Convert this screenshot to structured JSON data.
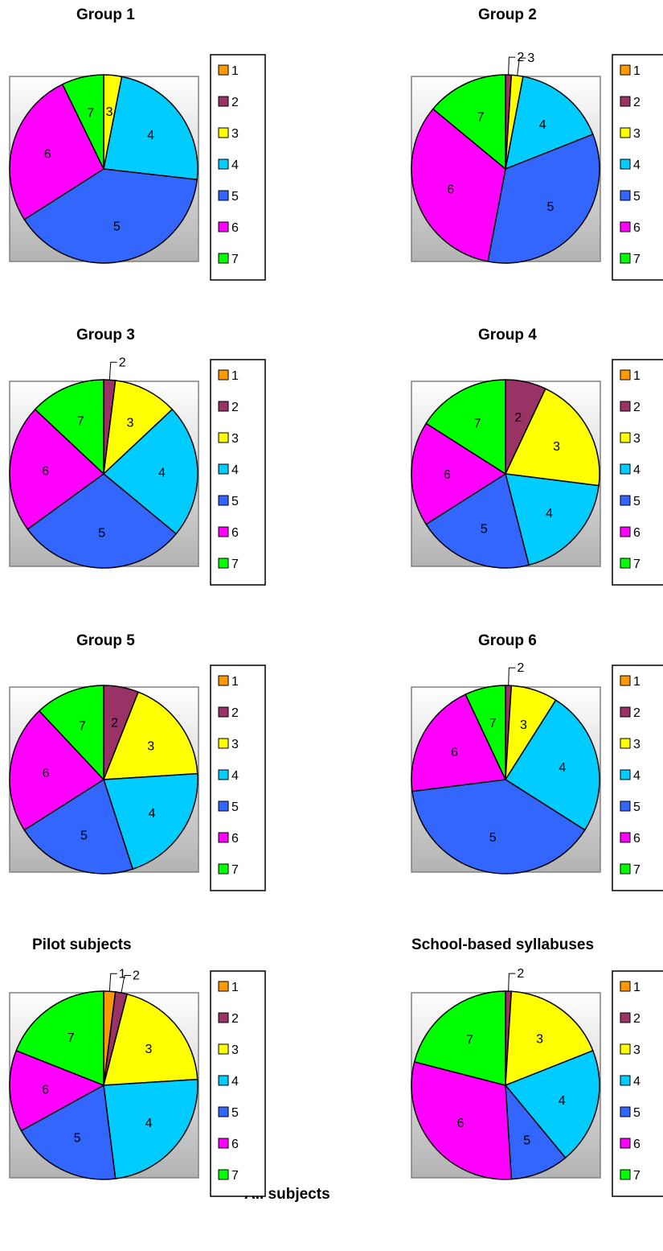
{
  "chart_data": [
    {
      "type": "pie",
      "title": "Group 1",
      "categories": [
        "1",
        "2",
        "3",
        "4",
        "5",
        "6",
        "7"
      ],
      "values": [
        0,
        0,
        3,
        23,
        38,
        26,
        7
      ]
    },
    {
      "type": "pie",
      "title": "Group 2",
      "categories": [
        "1",
        "2",
        "3",
        "4",
        "5",
        "6",
        "7"
      ],
      "values": [
        0,
        1,
        2,
        16,
        34,
        33,
        14
      ]
    },
    {
      "type": "pie",
      "title": "Group 3",
      "categories": [
        "1",
        "2",
        "3",
        "4",
        "5",
        "6",
        "7"
      ],
      "values": [
        0,
        2,
        11,
        23,
        29,
        22,
        13
      ]
    },
    {
      "type": "pie",
      "title": "Group 4",
      "categories": [
        "1",
        "2",
        "3",
        "4",
        "5",
        "6",
        "7"
      ],
      "values": [
        0,
        7,
        20,
        19,
        20,
        18,
        16
      ]
    },
    {
      "type": "pie",
      "title": "Group 5",
      "categories": [
        "1",
        "2",
        "3",
        "4",
        "5",
        "6",
        "7"
      ],
      "values": [
        0,
        6,
        18,
        21,
        21,
        22,
        12
      ]
    },
    {
      "type": "pie",
      "title": "Group 6",
      "categories": [
        "1",
        "2",
        "3",
        "4",
        "5",
        "6",
        "7"
      ],
      "values": [
        0,
        1,
        8,
        25,
        39,
        20,
        7
      ]
    },
    {
      "type": "pie",
      "title": "Pilot subjects",
      "categories": [
        "1",
        "2",
        "3",
        "4",
        "5",
        "6",
        "7"
      ],
      "values": [
        2,
        2,
        20,
        24,
        19,
        14,
        19
      ]
    },
    {
      "type": "pie",
      "title": "School-based syllabuses",
      "categories": [
        "1",
        "2",
        "3",
        "4",
        "5",
        "6",
        "7"
      ],
      "values": [
        0,
        1,
        18,
        20,
        10,
        30,
        21
      ]
    }
  ],
  "colors": [
    "#ff9900",
    "#993366",
    "#ffff00",
    "#00ccff",
    "#3366ff",
    "#ff00ff",
    "#00ff00"
  ],
  "footer_title": "All subjects"
}
